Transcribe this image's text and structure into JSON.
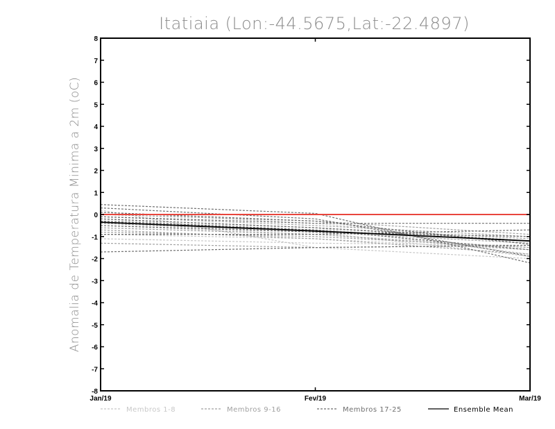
{
  "chart_data": {
    "type": "line",
    "title": "Itatiaia (Lon:-44.5675,Lat:-22.4897)",
    "ylabel": "Anomalia de Temperatura Minima a 2m (oC)",
    "xlabel": "",
    "categories": [
      "Jan/19",
      "Fev/19",
      "Mar/19"
    ],
    "ylim": [
      -8,
      8
    ],
    "yticks": [
      "8",
      "7",
      "6",
      "5",
      "4",
      "3",
      "2",
      "1",
      "0",
      "-1",
      "-2",
      "-3",
      "-4",
      "-5",
      "-6",
      "-7",
      "-8"
    ],
    "yticks_values": [
      8,
      7,
      6,
      5,
      4,
      3,
      2,
      1,
      0,
      -1,
      -2,
      -3,
      -4,
      -5,
      -6,
      -7,
      -8
    ],
    "grid": false,
    "zero_line_color": "#e8453c",
    "colors": {
      "membros_1_8": "#c8c8c8",
      "membros_9_16": "#a0a0a0",
      "membros_17_25": "#6e6e6e",
      "ensemble_mean": "#000000"
    },
    "groups": [
      {
        "name": "Membros 1-8",
        "color_key": "membros_1_8",
        "series": [
          [
            0.2,
            -1.5,
            -2.0
          ],
          [
            -0.3,
            -0.6,
            -1.8
          ],
          [
            -0.9,
            -1.1,
            -1.6
          ],
          [
            0.1,
            -0.4,
            -1.3
          ],
          [
            -0.5,
            -0.9,
            -1.5
          ],
          [
            -0.2,
            -0.8,
            -1.9
          ],
          [
            -1.1,
            -1.3,
            -1.4
          ],
          [
            -0.4,
            -0.7,
            -1.2
          ]
        ]
      },
      {
        "name": "Membros 9-16",
        "color_key": "membros_9_16",
        "series": [
          [
            -0.8,
            -1.0,
            -1.5
          ],
          [
            -0.1,
            -0.5,
            -1.0
          ],
          [
            -1.3,
            -1.5,
            -1.4
          ],
          [
            -0.6,
            -0.9,
            -1.6
          ],
          [
            0.0,
            -0.3,
            -0.9
          ],
          [
            -0.4,
            -0.8,
            -1.3
          ],
          [
            -0.7,
            -1.1,
            -1.8
          ],
          [
            -0.2,
            -0.6,
            -1.1
          ]
        ]
      },
      {
        "name": "Membros 17-25",
        "color_key": "membros_17_25",
        "series": [
          [
            0.45,
            0.05,
            -2.2
          ],
          [
            0.3,
            -0.2,
            -1.9
          ],
          [
            -0.2,
            -0.6,
            -1.2
          ],
          [
            -0.5,
            -0.8,
            -1.0
          ],
          [
            -1.7,
            -1.5,
            -1.4
          ],
          [
            -0.1,
            -0.4,
            -0.4
          ],
          [
            -0.9,
            -0.9,
            -0.7
          ],
          [
            -0.3,
            -0.7,
            -1.6
          ],
          [
            0.1,
            -0.3,
            -1.35
          ]
        ]
      }
    ],
    "ensemble_mean": {
      "name": "Ensemble Mean",
      "color_key": "ensemble_mean",
      "values": [
        -0.35,
        -0.75,
        -1.2
      ]
    },
    "legend": [
      {
        "label": "Membros 1-8",
        "color_key": "membros_1_8",
        "style": "dashed"
      },
      {
        "label": "Membros 9-16",
        "color_key": "membros_9_16",
        "style": "dashed"
      },
      {
        "label": "Membros 17-25",
        "color_key": "membros_17_25",
        "style": "dashed"
      },
      {
        "label": "Ensemble Mean",
        "color_key": "ensemble_mean",
        "style": "solid"
      }
    ],
    "legend_position": "bottom"
  }
}
